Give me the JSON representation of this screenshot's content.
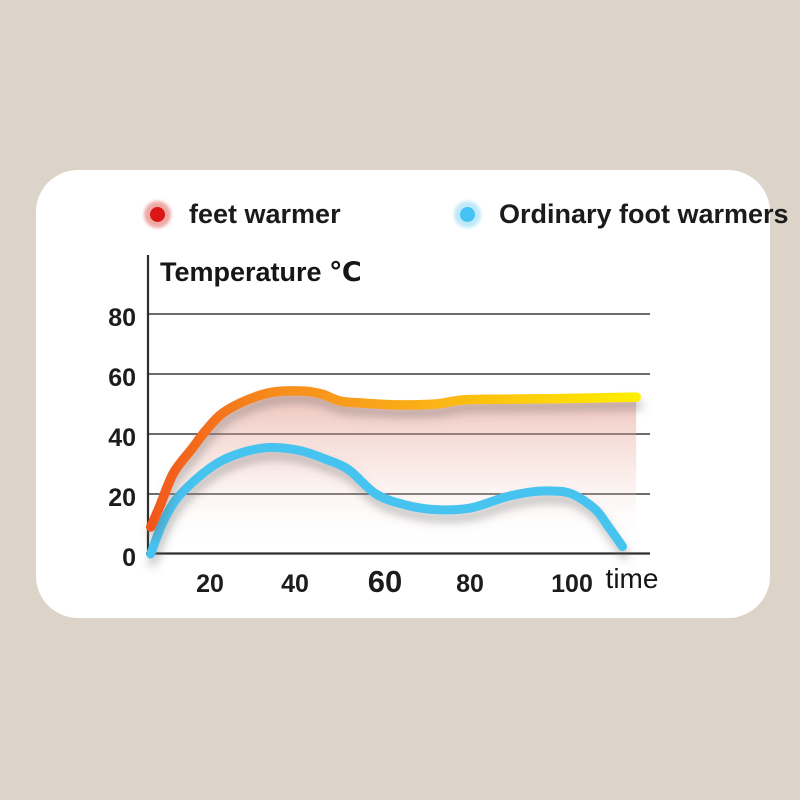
{
  "colors": {
    "page_background": "#dcd4c9",
    "card_background": "#ffffff",
    "text": "#1b1b1b",
    "axis": "#3c3c3c"
  },
  "legend": {
    "items": [
      {
        "label": "feet warmer",
        "dot_color": "#da1717",
        "halo_color": "#efa9a4"
      },
      {
        "label": "Ordinary foot warmers",
        "dot_color": "#43c3f1",
        "halo_color": "#bfe9fa"
      }
    ]
  },
  "chart_data": {
    "type": "line",
    "title": "",
    "ylabel": "Temperature ℃",
    "xlabel": "time",
    "yticks": [
      0,
      20,
      40,
      60,
      80
    ],
    "xticks": [
      20,
      40,
      60,
      80,
      100
    ],
    "emphasized_xtick": 60,
    "xlim": [
      6,
      117
    ],
    "ylim": [
      0,
      100
    ],
    "grid": true,
    "legend_position": "top",
    "series": [
      {
        "name": "feet warmer",
        "line_gradient": [
          "#f2571c",
          "#f68b1f",
          "#faa819",
          "#fdcb0a",
          "#ffef00"
        ],
        "area_fill": [
          "rgba(223,132,113,0.50)",
          "rgba(234,177,166,0.30)",
          "rgba(255,255,255,0)"
        ],
        "points": [
          [
            7,
            9
          ],
          [
            9,
            16
          ],
          [
            12,
            27
          ],
          [
            16,
            35
          ],
          [
            19,
            41
          ],
          [
            23,
            47
          ],
          [
            29,
            51.5
          ],
          [
            35,
            54
          ],
          [
            42,
            54.3
          ],
          [
            46,
            53.3
          ],
          [
            50,
            51
          ],
          [
            55,
            50.3
          ],
          [
            63,
            49.7
          ],
          [
            72,
            50
          ],
          [
            78,
            51.3
          ],
          [
            86,
            51.6
          ],
          [
            97,
            51.8
          ],
          [
            114,
            52.3
          ]
        ]
      },
      {
        "name": "Ordinary foot warmers",
        "color": "#47c3f0",
        "points": [
          [
            7,
            0
          ],
          [
            9.5,
            10
          ],
          [
            12.5,
            18
          ],
          [
            17,
            25
          ],
          [
            22,
            30.5
          ],
          [
            28,
            34
          ],
          [
            34,
            35.5
          ],
          [
            41,
            34.5
          ],
          [
            47,
            31.5
          ],
          [
            52,
            28
          ],
          [
            58,
            20
          ],
          [
            65,
            16.3
          ],
          [
            72,
            14.8
          ],
          [
            80,
            15.3
          ],
          [
            87,
            19
          ],
          [
            92,
            20.7
          ],
          [
            96,
            21
          ],
          [
            100,
            20
          ],
          [
            105,
            15
          ],
          [
            108,
            9
          ],
          [
            111,
            2.5
          ]
        ]
      }
    ]
  }
}
